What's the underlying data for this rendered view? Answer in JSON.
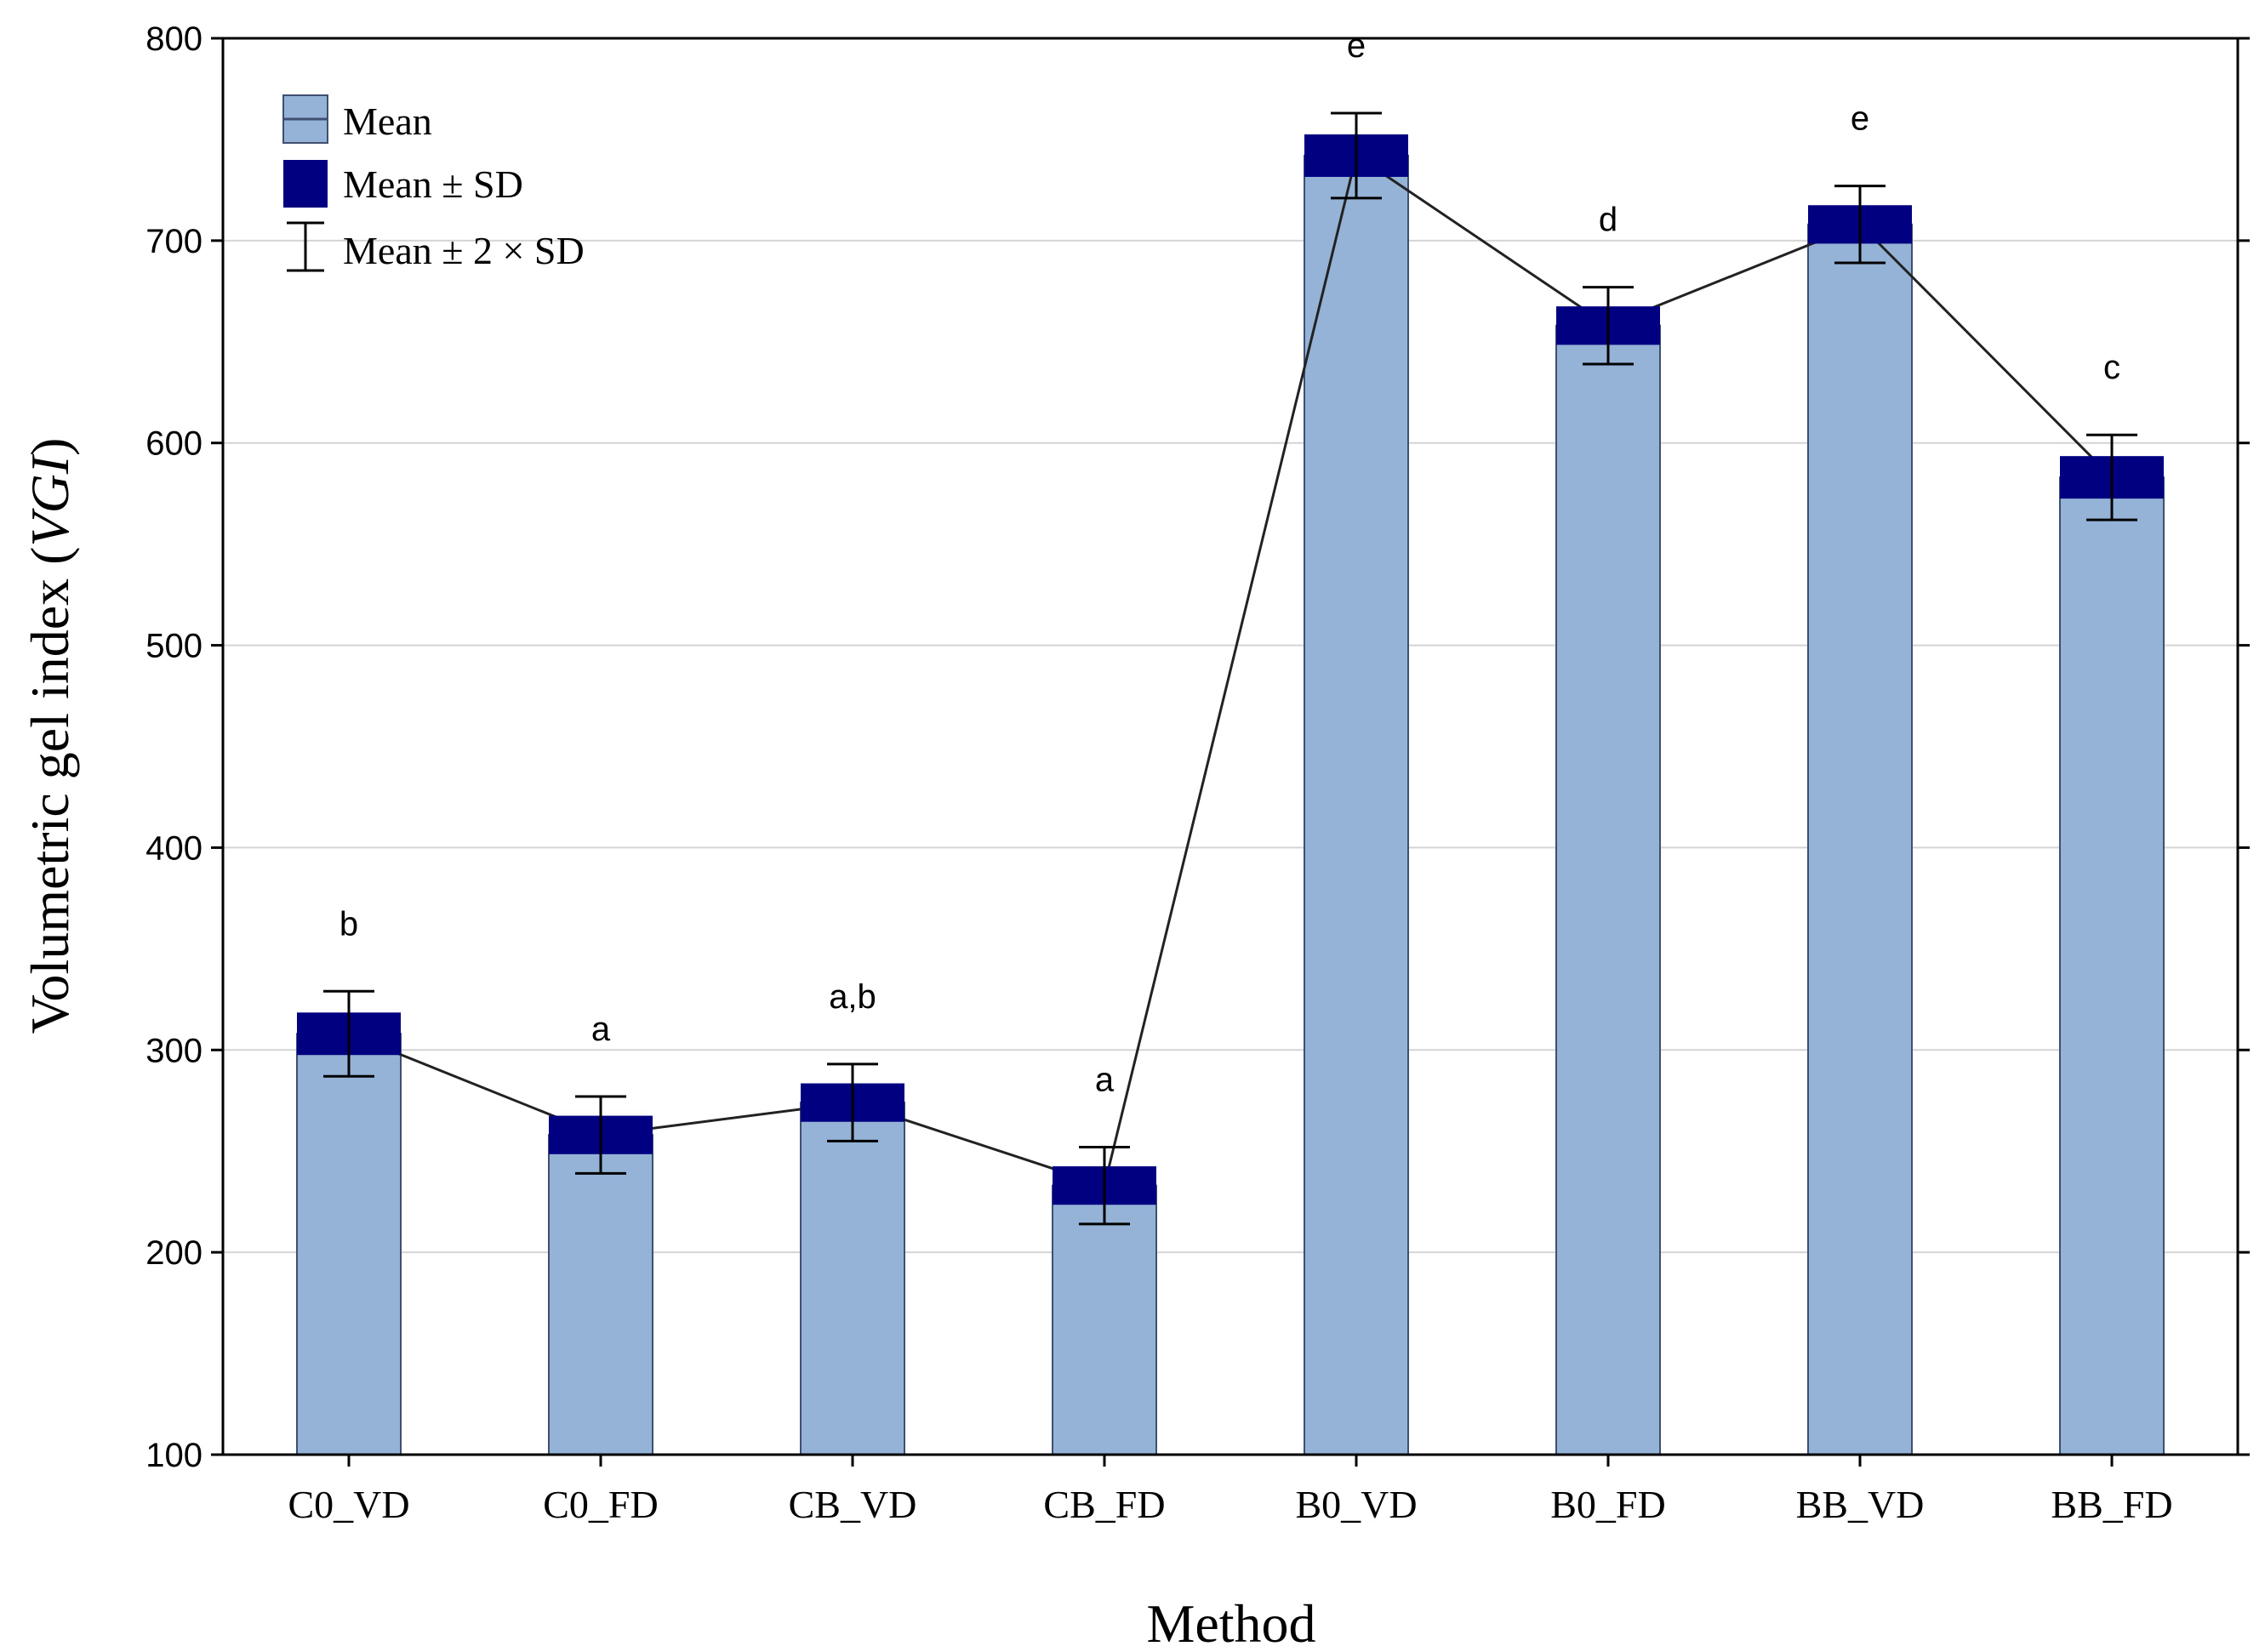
{
  "chart_data": {
    "type": "bar",
    "title": "",
    "xlabel": "Method",
    "ylabel": "Volumetric gel index (",
    "ylabel_italic": "VGI",
    "ylabel_suffix": ")",
    "ylim": [
      100,
      800
    ],
    "yticks": [
      100,
      200,
      300,
      400,
      500,
      600,
      700,
      800
    ],
    "grid": "horizontal",
    "legend_position": "top-left",
    "legend": [
      {
        "key": "mean",
        "label": "Mean"
      },
      {
        "key": "sd",
        "label": "Mean ± SD"
      },
      {
        "key": "sd2",
        "label": "Mean ± 2 × SD"
      }
    ],
    "categories": [
      "C0_VD",
      "C0_FD",
      "CB_VD",
      "CB_FD",
      "B0_VD",
      "B0_FD",
      "BB_VD",
      "BB_FD"
    ],
    "means": [
      308,
      258,
      274,
      233,
      742,
      658,
      708,
      583
    ],
    "sd": [
      10.5,
      9.5,
      9.5,
      9.5,
      10.5,
      9.5,
      9.5,
      10.5
    ],
    "significance": [
      "b",
      "a",
      "a,b",
      "a",
      "e",
      "d",
      "e",
      "c"
    ],
    "colors": {
      "bar": "#95b3d7",
      "bar_edge": "#3f4f6f",
      "sd_box": "#000080",
      "line": "#222222",
      "grid": "#d4d4d4",
      "axis": "#000000"
    }
  }
}
